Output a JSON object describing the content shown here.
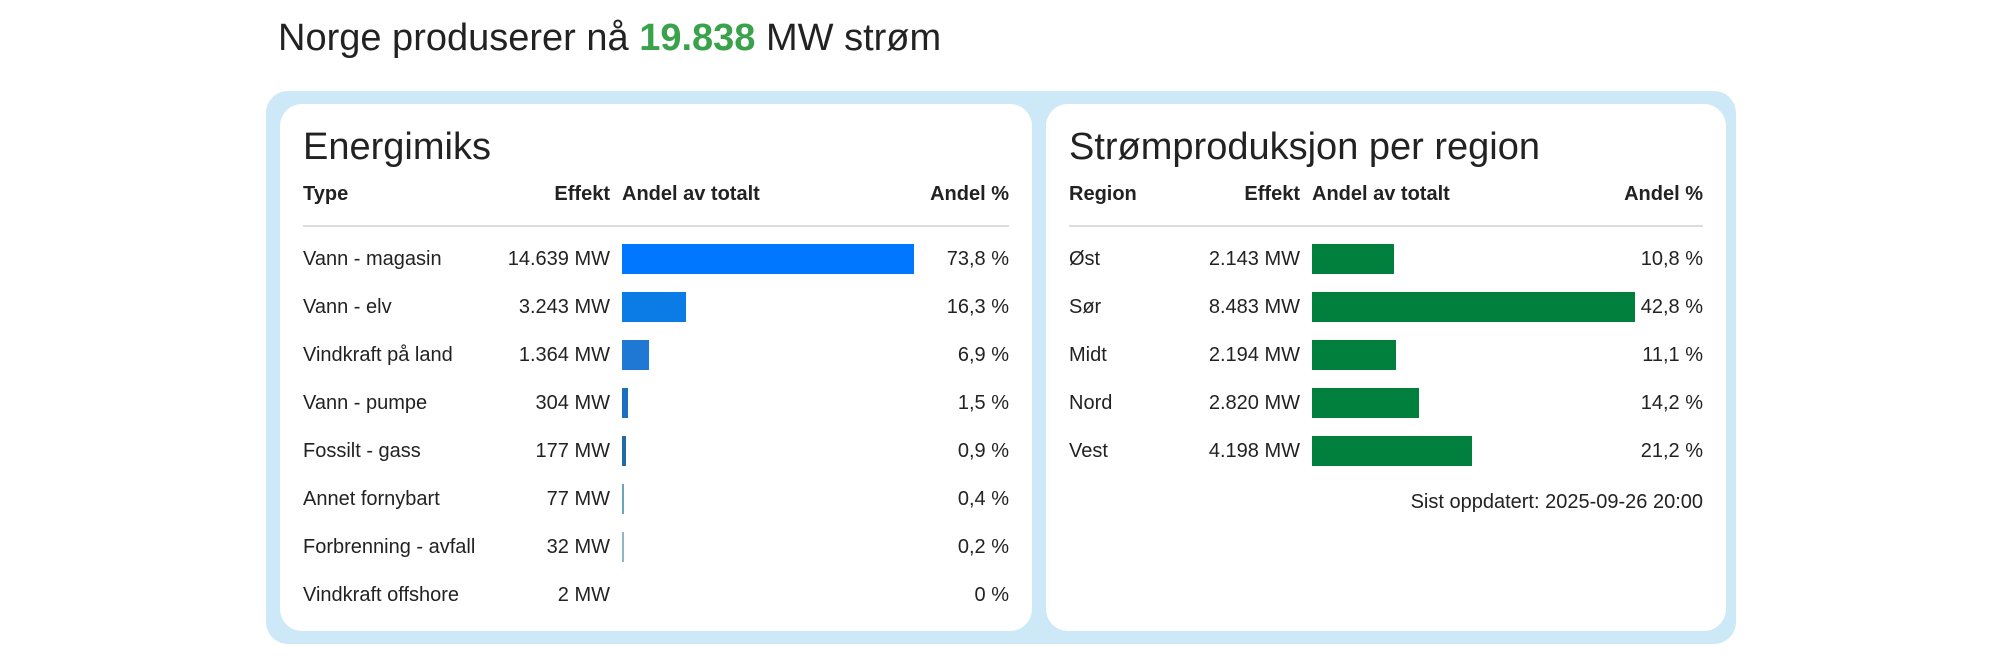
{
  "headline": {
    "prefix": "Norge produserer nå",
    "value": "19.838",
    "suffix": "MW strøm"
  },
  "energy_mix": {
    "title": "Energimiks",
    "columns": {
      "type": "Type",
      "effect": "Effekt",
      "share_bar": "Andel av totalt",
      "share_pct": "Andel %"
    },
    "bar_colors": [
      "#0077ff",
      "#0b7be6",
      "#1f79d4",
      "#1b6fc0",
      "#1b6ca8",
      "#6aa6b8",
      "#8fb7c4",
      "#b3cdd6"
    ],
    "rows": [
      {
        "type": "Vann - magasin",
        "effect": "14.639 MW",
        "share": 73.8,
        "share_label": "73,8 %"
      },
      {
        "type": "Vann - elv",
        "effect": "3.243 MW",
        "share": 16.3,
        "share_label": "16,3 %"
      },
      {
        "type": "Vindkraft på land",
        "effect": "1.364 MW",
        "share": 6.9,
        "share_label": "6,9 %"
      },
      {
        "type": "Vann - pumpe",
        "effect": "304 MW",
        "share": 1.5,
        "share_label": "1,5 %"
      },
      {
        "type": "Fossilt - gass",
        "effect": "177 MW",
        "share": 0.9,
        "share_label": "0,9 %"
      },
      {
        "type": "Annet fornybart",
        "effect": "77 MW",
        "share": 0.4,
        "share_label": "0,4 %"
      },
      {
        "type": "Forbrenning - avfall",
        "effect": "32 MW",
        "share": 0.2,
        "share_label": "0,2 %"
      },
      {
        "type": "Vindkraft offshore",
        "effect": "2 MW",
        "share": 0,
        "share_label": "0 %"
      }
    ]
  },
  "regions": {
    "title": "Strømproduksjon per region",
    "columns": {
      "region": "Region",
      "effect": "Effekt",
      "share_bar": "Andel av totalt",
      "share_pct": "Andel %"
    },
    "bar_color": "#00803c",
    "rows": [
      {
        "region": "Øst",
        "effect": "2.143 MW",
        "share": 10.8,
        "share_label": "10,8 %"
      },
      {
        "region": "Sør",
        "effect": "8.483 MW",
        "share": 42.8,
        "share_label": "42,8 %"
      },
      {
        "region": "Midt",
        "effect": "2.194 MW",
        "share": 11.1,
        "share_label": "11,1 %"
      },
      {
        "region": "Nord",
        "effect": "2.820 MW",
        "share": 14.2,
        "share_label": "14,2 %"
      },
      {
        "region": "Vest",
        "effect": "4.198 MW",
        "share": 21.2,
        "share_label": "21,2 %"
      }
    ],
    "last_updated": "Sist oppdatert: 2025-09-26 20:00"
  }
}
